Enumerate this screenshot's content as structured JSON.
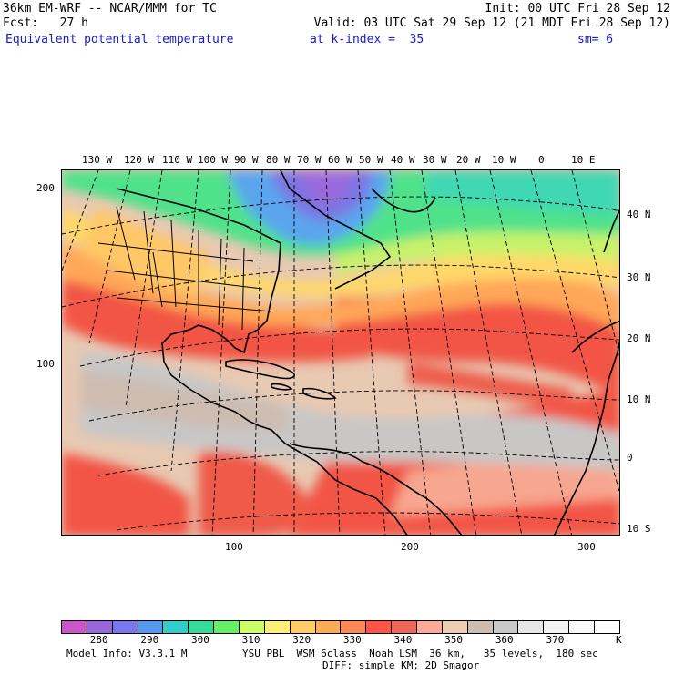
{
  "header": {
    "line1_left": "36km EM-WRF -- NCAR/MMM for TC",
    "line1_right": "Init: 00 UTC Fri 28 Sep 12",
    "line2_left": "Fcst:   27 h",
    "line2_right": "Valid: 03 UTC Sat 29 Sep 12 (21 MDT Fri 28 Sep 12)",
    "field": "Equivalent potential temperature",
    "level": "at k-index =  35",
    "smooth": "sm= 6"
  },
  "map": {
    "top_lon_labels": [
      "130 W",
      "120 W",
      "110 W",
      "100 W",
      "90 W",
      "80 W",
      "70 W",
      "60 W",
      "50 W",
      "40 W",
      "30 W",
      "20 W",
      "10 W",
      "0",
      "10 E"
    ],
    "right_lat_labels": [
      "40 N",
      "30 N",
      "20 N",
      "10 N",
      "0",
      "10 S"
    ],
    "left_grid_labels": [
      "200",
      "100"
    ],
    "bottom_grid_labels": [
      "100",
      "200",
      "300"
    ]
  },
  "legend": {
    "colors": [
      "#cc55cc",
      "#9966dd",
      "#7777ee",
      "#5599ee",
      "#33cccc",
      "#33dd99",
      "#66ee66",
      "#ccff66",
      "#ffee77",
      "#ffcc66",
      "#ffaa55",
      "#ff8855",
      "#ff5544",
      "#ee6655",
      "#ffaa99",
      "#eecdb5",
      "#cdbdb0",
      "#c9c9c9",
      "#e6e6e6",
      "#f4f4f4",
      "#fafafa",
      "#ffffff"
    ],
    "labels": [
      "280",
      "290",
      "300",
      "310",
      "320",
      "330",
      "340",
      "350",
      "360",
      "370"
    ],
    "unit": "K"
  },
  "footer": {
    "model_info": "Model Info: V3.3.1 M",
    "physics": "YSU PBL  WSM 6class  Noah LSM  36 km,   35 levels,  180 sec",
    "diffusion": "DIFF: simple KM; 2D Smagor"
  }
}
